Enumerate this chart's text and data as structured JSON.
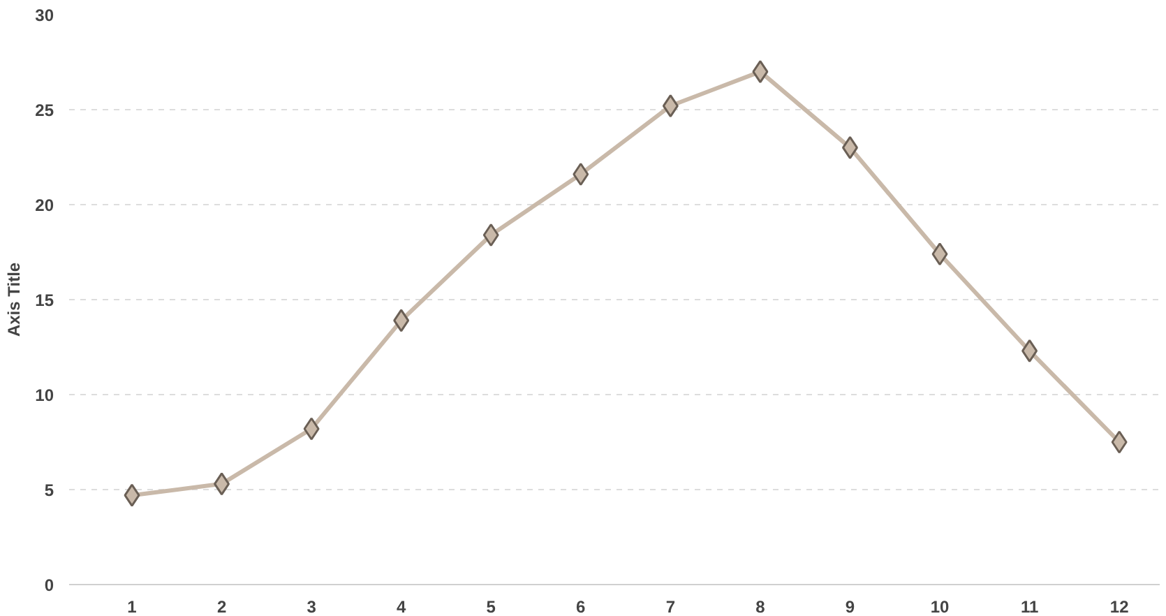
{
  "chart_data": {
    "type": "line",
    "ylabel": "Axis Title",
    "x": [
      1,
      2,
      3,
      4,
      5,
      6,
      7,
      8,
      9,
      10,
      11,
      12
    ],
    "xlim": [
      0.3,
      12.45
    ],
    "xticks": [
      1,
      2,
      3,
      4,
      5,
      6,
      7,
      8,
      9,
      10,
      11,
      12
    ],
    "series": [
      {
        "color": "#c9b9a9",
        "values": [
          4.7,
          5.3,
          8.2,
          13.9,
          18.4,
          21.6,
          25.2,
          27.0,
          23.0,
          17.4,
          12.3,
          7.5
        ]
      }
    ],
    "ylim": [
      0,
      30
    ],
    "yticks": [
      0,
      5,
      10,
      15,
      20,
      25,
      30
    ],
    "grid": "y",
    "marker": "diamond",
    "line_style": "solid"
  }
}
